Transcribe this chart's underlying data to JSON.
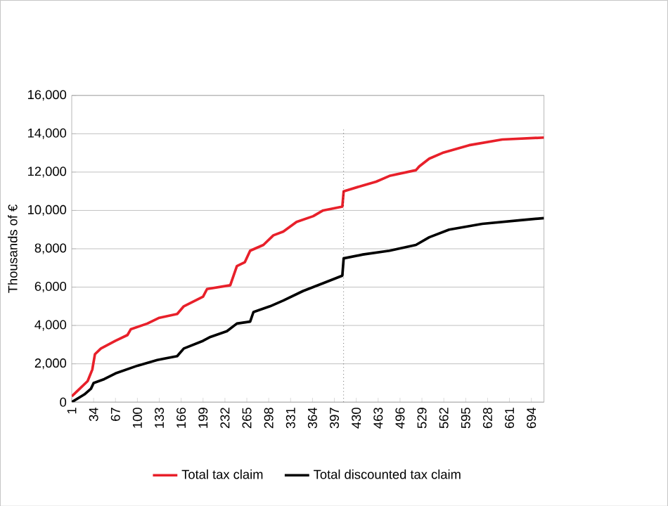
{
  "chart_data": {
    "type": "line",
    "ylabel": "Thousands of €",
    "xlim": [
      1,
      713
    ],
    "xticks": [
      1,
      34,
      67,
      100,
      133,
      166,
      199,
      232,
      265,
      298,
      331,
      364,
      397,
      430,
      463,
      496,
      529,
      562,
      595,
      628,
      661,
      694
    ],
    "ylim": [
      0,
      16000
    ],
    "yticks": [
      0,
      {
        "value": 2000,
        "label": "2,000"
      },
      {
        "value": 4000,
        "label": "4,000"
      },
      {
        "value": 6000,
        "label": "6,000"
      },
      {
        "value": 8000,
        "label": "8,000"
      },
      {
        "value": 10000,
        "label": "10,000"
      },
      {
        "value": 12000,
        "label": "12,000"
      },
      {
        "value": 14000,
        "label": "14,000"
      },
      {
        "value": 16000,
        "label": "16,000"
      }
    ],
    "grid": "y",
    "legend": "bottom",
    "marker": "none",
    "line_style": "solid",
    "ref_lines": [
      {
        "axis": "x",
        "value": 411,
        "color": "#000000",
        "line_style": "dotted"
      }
    ],
    "series": [
      {
        "name": "Total tax claim",
        "color": "#e8202a",
        "x": [
          1,
          10,
          25,
          32,
          36,
          45,
          67,
          85,
          90,
          115,
          133,
          160,
          170,
          199,
          205,
          240,
          250,
          262,
          270,
          290,
          305,
          320,
          340,
          365,
          380,
          409,
          411,
          440,
          460,
          480,
          520,
          525,
          540,
          560,
          600,
          650,
          713
        ],
        "values": [
          300,
          600,
          1100,
          1700,
          2500,
          2800,
          3200,
          3500,
          3800,
          4100,
          4400,
          4600,
          5000,
          5500,
          5900,
          6100,
          7100,
          7300,
          7900,
          8200,
          8700,
          8900,
          9400,
          9700,
          10000,
          10200,
          11000,
          11300,
          11500,
          11800,
          12100,
          12300,
          12700,
          13000,
          13400,
          13700,
          13800
        ]
      },
      {
        "name": "Total discounted tax claim",
        "color": "#000000",
        "x": [
          1,
          20,
          30,
          34,
          50,
          67,
          100,
          130,
          160,
          170,
          199,
          210,
          235,
          250,
          270,
          275,
          300,
          320,
          350,
          380,
          409,
          411,
          440,
          480,
          520,
          540,
          570,
          620,
          680,
          713
        ],
        "values": [
          0,
          400,
          700,
          1000,
          1200,
          1500,
          1900,
          2200,
          2400,
          2800,
          3200,
          3400,
          3700,
          4100,
          4200,
          4700,
          5000,
          5300,
          5800,
          6200,
          6600,
          7500,
          7700,
          7900,
          8200,
          8600,
          9000,
          9300,
          9500,
          9600
        ]
      }
    ]
  }
}
